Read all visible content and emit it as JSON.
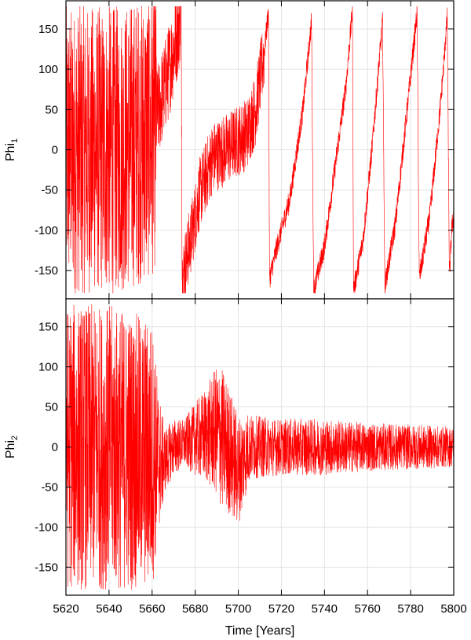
{
  "chart_data": {
    "type": "line",
    "shared_x_axis": {
      "label": "Time [Years]",
      "range": [
        5620,
        5800
      ],
      "ticks": [
        5620,
        5640,
        5660,
        5680,
        5700,
        5720,
        5740,
        5760,
        5780,
        5800
      ]
    },
    "panels": [
      {
        "id": "phi1",
        "ylabel": "Phi",
        "ylabel_subscript": "1",
        "ylim": [
          -185,
          185
        ],
        "yticks": [
          -150,
          -100,
          -50,
          0,
          50,
          100,
          150
        ],
        "grid": true,
        "series": [
          {
            "color": "#ff0000",
            "description_points": [
              [
                5620,
                0
              ],
              [
                5630,
                0
              ],
              [
                5645,
                0
              ],
              [
                5660,
                20
              ],
              [
                5668,
                100
              ],
              [
                5672,
                150
              ],
              [
                5673.5,
                175
              ],
              [
                5674,
                -160
              ],
              [
                5678,
                -110
              ],
              [
                5682,
                -55
              ],
              [
                5688,
                -10
              ],
              [
                5694,
                0
              ],
              [
                5699,
                10
              ],
              [
                5704,
                20
              ],
              [
                5708,
                50
              ],
              [
                5712,
                120
              ],
              [
                5714,
                172
              ],
              [
                5714.5,
                -160
              ],
              [
                5718,
                -120
              ],
              [
                5724,
                -60
              ],
              [
                5730,
                50
              ],
              [
                5734,
                160
              ],
              [
                5735,
                -175
              ],
              [
                5740,
                -120
              ],
              [
                5745,
                -20
              ],
              [
                5750,
                80
              ],
              [
                5753,
                175
              ],
              [
                5753.5,
                -175
              ],
              [
                5758,
                -110
              ],
              [
                5762,
                0
              ],
              [
                5767,
                160
              ],
              [
                5768,
                -170
              ],
              [
                5773,
                -90
              ],
              [
                5778,
                40
              ],
              [
                5783,
                170
              ],
              [
                5784,
                -160
              ],
              [
                5789,
                -80
              ],
              [
                5794,
                60
              ],
              [
                5797,
                165
              ],
              [
                5798,
                -160
              ],
              [
                5799,
                -100
              ],
              [
                5800,
                -80
              ]
            ]
          }
        ]
      },
      {
        "id": "phi2",
        "ylabel": "Phi",
        "ylabel_subscript": "2",
        "ylim": [
          -185,
          185
        ],
        "yticks": [
          -150,
          -100,
          -50,
          0,
          50,
          100,
          150
        ],
        "grid": true,
        "series": [
          {
            "color": "#ff0000",
            "description_points": [
              [
                5620,
                0
              ],
              [
                5640,
                0
              ],
              [
                5660,
                -10
              ],
              [
                5665,
                -20
              ],
              [
                5670,
                0
              ],
              [
                5680,
                10
              ],
              [
                5690,
                20
              ],
              [
                5695,
                0
              ],
              [
                5700,
                -30
              ],
              [
                5705,
                0
              ],
              [
                5720,
                0
              ],
              [
                5740,
                0
              ],
              [
                5760,
                0
              ],
              [
                5780,
                0
              ],
              [
                5800,
                0
              ]
            ],
            "amplitude_envelope": [
              [
                5620,
                180
              ],
              [
                5645,
                178
              ],
              [
                5660,
                170
              ],
              [
                5663,
                90
              ],
              [
                5666,
                40
              ],
              [
                5675,
                30
              ],
              [
                5685,
                60
              ],
              [
                5692,
                90
              ],
              [
                5700,
                70
              ],
              [
                5706,
                40
              ],
              [
                5720,
                35
              ],
              [
                5740,
                35
              ],
              [
                5760,
                30
              ],
              [
                5780,
                28
              ],
              [
                5800,
                25
              ]
            ]
          }
        ]
      }
    ]
  }
}
